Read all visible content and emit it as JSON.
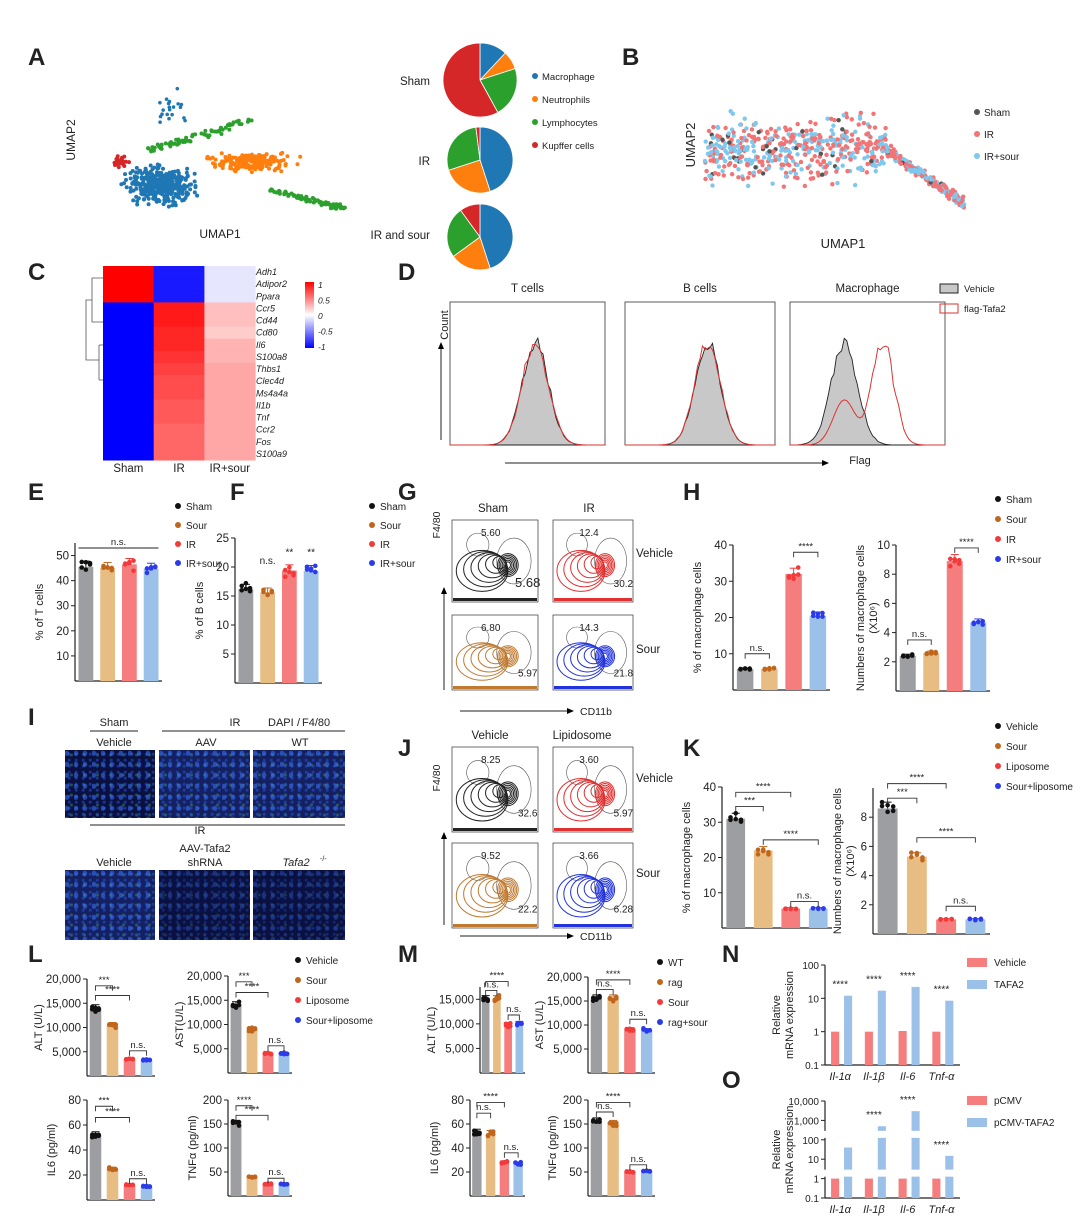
{
  "panel_letters": [
    "A",
    "B",
    "C",
    "D",
    "E",
    "F",
    "G",
    "H",
    "I",
    "J",
    "K",
    "L",
    "M",
    "N",
    "O"
  ],
  "umap": {
    "xlabel": "UMAP1",
    "ylabel": "UMAP2"
  },
  "cell_types": {
    "labels": [
      "Macrophage",
      "Neutrophils",
      "Lymphocytes",
      "Kupffer cells"
    ],
    "colors": [
      "#1f77b4",
      "#ff7f0e",
      "#2ca02c",
      "#d62728"
    ]
  },
  "pies": [
    {
      "label": "Sham",
      "fractions": [
        0.12,
        0.08,
        0.22,
        0.58
      ]
    },
    {
      "label": "IR",
      "fractions": [
        0.45,
        0.25,
        0.28,
        0.02
      ]
    },
    {
      "label": "IR and sour",
      "fractions": [
        0.45,
        0.2,
        0.25,
        0.1
      ]
    }
  ],
  "umap_B": {
    "labels": [
      "Sham",
      "IR",
      "IR+sour"
    ],
    "colors": [
      "#555555",
      "#f27474",
      "#7ec8f0"
    ]
  },
  "heatmap": {
    "columns": [
      "Sham",
      "IR",
      "IR+sour"
    ],
    "genes": [
      "Adh1",
      "Adipor2",
      "Ppara",
      "Ccr5",
      "Cd44",
      "Cd80",
      "Il6",
      "S100a8",
      "Thbs1",
      "Clec4d",
      "Ms4a4a",
      "Il1b",
      "Tnf",
      "Ccr2",
      "Fos",
      "S100a9"
    ],
    "highlight": [
      "Il6",
      "S100a8",
      "Il1b",
      "Tnf",
      "S100a9"
    ],
    "values": [
      [
        1,
        -0.9,
        -0.1
      ],
      [
        1,
        -0.9,
        -0.1
      ],
      [
        1,
        -0.9,
        -0.1
      ],
      [
        -1,
        0.9,
        0.25
      ],
      [
        -1,
        0.9,
        0.25
      ],
      [
        -1,
        0.85,
        0.2
      ],
      [
        -1,
        0.85,
        0.3
      ],
      [
        -1,
        0.8,
        0.3
      ],
      [
        -1,
        0.75,
        0.35
      ],
      [
        -1,
        0.7,
        0.35
      ],
      [
        -1,
        0.7,
        0.35
      ],
      [
        -1,
        0.65,
        0.35
      ],
      [
        -1,
        0.65,
        0.35
      ],
      [
        -1,
        0.6,
        0.35
      ],
      [
        -1,
        0.6,
        0.35
      ],
      [
        -1,
        0.6,
        0.35
      ]
    ],
    "colorbar_ticks": [
      "1",
      "0.5",
      "0",
      "-0.5",
      "-1"
    ]
  },
  "histograms": {
    "titles": [
      "T cells",
      "B cells",
      "Macrophage"
    ],
    "ylabel": "Count",
    "xlabel": "Flag",
    "legend": [
      "Vehicle",
      "flag-Tafa2"
    ]
  },
  "flow_G": {
    "cols": [
      "Sham",
      "IR"
    ],
    "rows": [
      "Vehicle",
      "Sour"
    ],
    "ylabel": "F4/80",
    "xlabel": "CD11b",
    "values": [
      [
        "5.60",
        "5.68"
      ],
      [
        "12.4",
        "30.2"
      ],
      [
        "6.80",
        "5.97"
      ],
      [
        "14.3",
        "21.8"
      ]
    ]
  },
  "flow_J": {
    "cols": [
      "Vehicle",
      "Lipidosome"
    ],
    "rows": [
      "Vehicle",
      "Sour"
    ],
    "ylabel": "F4/80",
    "xlabel": "CD11b",
    "values": [
      [
        "8.25",
        "32.6"
      ],
      [
        "3.60",
        "5.97"
      ],
      [
        "9.52",
        "22.2"
      ],
      [
        "3.66",
        "6.28"
      ]
    ]
  },
  "imaging_I": {
    "top_groups": [
      "Sham",
      "IR"
    ],
    "stain_dapi": "DAPI",
    "stain_sep": "/",
    "stain_f480": "F4/80",
    "top_labels": [
      "Vehicle",
      "AAV",
      "WT"
    ],
    "bottom_group": "IR",
    "aav_label": "AAV-Tafa2",
    "bottom_labels": [
      "Vehicle",
      "shRNA",
      "Tafa2",
      "-/-"
    ]
  },
  "colors": {
    "bars4": [
      "#9d9ea2",
      "#e8bd84",
      "#f57d7d",
      "#9cc1e8"
    ],
    "dots4": [
      "#111111",
      "#c0661c",
      "#f23a3a",
      "#2b3bea"
    ],
    "pair": [
      "#f57d7d",
      "#9cc1e8"
    ]
  },
  "chart_data": [
    {
      "panel": "E",
      "type": "bar",
      "ylabel": "% of T cells",
      "groups": [
        "Sham",
        "Sour",
        "IR",
        "IR+sour"
      ],
      "values": [
        45.5,
        45,
        46.5,
        44.7
      ],
      "ylim": [
        0,
        55
      ],
      "yticks": [
        10,
        20,
        30,
        40,
        50
      ],
      "yticklabels": [
        "10",
        "20",
        "30",
        "40",
        "50"
      ],
      "legend": [
        "Sham",
        "Sour",
        "IR",
        "IR+sour"
      ],
      "sig": [
        {
          "a": 0,
          "b": 3,
          "y": 53,
          "label": "n.s.",
          "line": true
        }
      ]
    },
    {
      "panel": "F",
      "type": "bar",
      "ylabel": "% of B cells",
      "groups": [
        "Sham",
        "Sour",
        "IR",
        "IR+sour"
      ],
      "values": [
        16.2,
        15.6,
        19.4,
        19.3
      ],
      "ylim": [
        0,
        25
      ],
      "yticks": [
        5,
        10,
        15,
        20,
        25
      ],
      "yticklabels": [
        "5",
        "10",
        "15",
        "20",
        "25"
      ],
      "legend": [
        "Sham",
        "Sour",
        "IR",
        "IR+sour"
      ],
      "sig": [
        {
          "a": 1,
          "y": 20.5,
          "label": "n.s."
        },
        {
          "a": 2,
          "y": 22,
          "label": "**"
        },
        {
          "a": 3,
          "y": 22,
          "label": "**"
        }
      ]
    },
    {
      "panel": "H",
      "type": "bar",
      "ylabel": "% of macrophage cells",
      "groups": [
        "Sham",
        "Sour",
        "IR",
        "IR+sour"
      ],
      "values": [
        5.8,
        5.8,
        32,
        20.5
      ],
      "ylim": [
        0,
        40
      ],
      "yticks": [
        10,
        20,
        30,
        40
      ],
      "yticklabels": [
        "10",
        "20",
        "30",
        "40"
      ],
      "sig": [
        {
          "a": 0,
          "b": 1,
          "y": 10,
          "label": "n.s."
        },
        {
          "a": 2,
          "b": 3,
          "y": 38,
          "label": "****"
        }
      ]
    },
    {
      "panel": "H",
      "type": "bar",
      "ylabel": "Numbers of macrophage cells",
      "ylabel2": "(X10⁶)",
      "groups": [
        "Sham",
        "Sour",
        "IR",
        "IR+sour"
      ],
      "values": [
        2.4,
        2.6,
        8.9,
        4.7
      ],
      "ylim": [
        0,
        10
      ],
      "yticks": [
        2,
        4,
        6,
        8,
        10
      ],
      "yticklabels": [
        "2",
        "4",
        "6",
        "8",
        "10"
      ],
      "legend": [
        "Sham",
        "Sour",
        "IR",
        "IR+sour"
      ],
      "sig": [
        {
          "a": 0,
          "b": 1,
          "y": 3.5,
          "label": "n.s."
        },
        {
          "a": 2,
          "b": 3,
          "y": 9.8,
          "label": "****"
        }
      ]
    },
    {
      "panel": "K",
      "type": "bar",
      "ylabel": "% of macrophage cells",
      "groups": [
        "Vehicle",
        "Sour",
        "Liposome",
        "Sour+liposome"
      ],
      "values": [
        31,
        22,
        5.5,
        5.5
      ],
      "ylim": [
        0,
        40
      ],
      "yticks": [
        10,
        20,
        30,
        40
      ],
      "yticklabels": [
        "10",
        "20",
        "30",
        "40"
      ],
      "sig": [
        {
          "a": 0,
          "b": 1,
          "y": 34.5,
          "label": "***"
        },
        {
          "a": 0,
          "b": 2,
          "y": 38.5,
          "label": "****"
        },
        {
          "a": 1,
          "b": 3,
          "y": 25,
          "label": "****"
        },
        {
          "a": 2,
          "b": 3,
          "y": 7.5,
          "label": "n.s."
        }
      ]
    },
    {
      "panel": "K",
      "type": "bar",
      "ylabel": "Numbers of macrophage cells",
      "ylabel2": "(X10⁶)",
      "groups": [
        "Vehicle",
        "Sour",
        "Liposome",
        "Sour+liposome"
      ],
      "values": [
        8.6,
        5.3,
        1.0,
        1.0
      ],
      "ylim": [
        0,
        10
      ],
      "yticks": [
        2,
        4,
        6,
        8
      ],
      "yticklabels": [
        "2",
        "4",
        "6",
        "8"
      ],
      "legend": [
        "Vehicle",
        "Sour",
        "Liposome",
        "Sour+liposome"
      ],
      "sig": [
        {
          "a": 0,
          "b": 1,
          "y": 9.3,
          "label": "***"
        },
        {
          "a": 0,
          "b": 2,
          "y": 10.3,
          "label": "****"
        },
        {
          "a": 1,
          "b": 3,
          "y": 6.6,
          "label": "****"
        },
        {
          "a": 2,
          "b": 3,
          "y": 1.9,
          "label": "n.s."
        }
      ]
    },
    {
      "panel": "L",
      "type": "bar",
      "ylabel": "ALT (U/L)",
      "groups": [
        "Vehicle",
        "Sour",
        "Liposome",
        "Sour+liposome"
      ],
      "values": [
        14000,
        10500,
        3500,
        3300
      ],
      "ylim": [
        0,
        20000
      ],
      "yticks": [
        5000,
        10000,
        15000,
        20000
      ],
      "yticklabels": [
        "5,000",
        "10,000",
        "15,000",
        "20,000"
      ],
      "legend": [
        "Vehicle",
        "Sour",
        "Liposome",
        "Sour+liposome"
      ],
      "sig": [
        {
          "a": 0,
          "b": 1,
          "y": 18600,
          "label": "***"
        },
        {
          "a": 0,
          "b": 2,
          "y": 16600,
          "label": "****"
        },
        {
          "a": 2,
          "b": 3,
          "y": 5200,
          "label": "n.s."
        }
      ]
    },
    {
      "panel": "L",
      "type": "bar",
      "ylabel": "AST(U/L)",
      "groups": [
        "Vehicle",
        "Sour",
        "Liposome",
        "Sour+liposome"
      ],
      "values": [
        14000,
        9000,
        4000,
        4000
      ],
      "ylim": [
        0,
        20000
      ],
      "yticks": [
        5000,
        10000,
        15000,
        20000
      ],
      "yticklabels": [
        "5,000",
        "10,000",
        "15,000",
        "20,000"
      ],
      "sig": [
        {
          "a": 0,
          "b": 1,
          "y": 18800,
          "label": "***"
        },
        {
          "a": 0,
          "b": 2,
          "y": 16600,
          "label": "****"
        },
        {
          "a": 2,
          "b": 3,
          "y": 5600,
          "label": "n.s."
        }
      ]
    },
    {
      "panel": "L",
      "type": "bar",
      "ylabel": "IL6 (pg/ml)",
      "groups": [
        "Vehicle",
        "Sour",
        "Liposome",
        "Sour+liposome"
      ],
      "values": [
        52,
        25,
        12,
        11
      ],
      "ylim": [
        0,
        80
      ],
      "yticks": [
        20,
        40,
        60,
        80
      ],
      "yticklabels": [
        "20",
        "40",
        "60",
        "80"
      ],
      "sig": [
        {
          "a": 0,
          "b": 1,
          "y": 75,
          "label": "***"
        },
        {
          "a": 0,
          "b": 2,
          "y": 66,
          "label": "****"
        },
        {
          "a": 2,
          "b": 3,
          "y": 17,
          "label": "n.s."
        }
      ]
    },
    {
      "panel": "L",
      "type": "bar",
      "ylabel": "TNFα (pg/ml)",
      "groups": [
        "Vehicle",
        "Sour",
        "Liposome",
        "Sour+liposome"
      ],
      "values": [
        150,
        40,
        25,
        25
      ],
      "ylim": [
        0,
        200
      ],
      "yticks": [
        50,
        100,
        150,
        200
      ],
      "yticklabels": [
        "50",
        "100",
        "150",
        "200"
      ],
      "sig": [
        {
          "a": 0,
          "b": 1,
          "y": 188,
          "label": "****"
        },
        {
          "a": 0,
          "b": 2,
          "y": 168,
          "label": "****"
        },
        {
          "a": 2,
          "b": 3,
          "y": 37,
          "label": "n.s."
        }
      ]
    },
    {
      "panel": "M",
      "type": "bar",
      "ylabel": "ALT (U/L)",
      "groups": [
        "WT",
        "rag",
        "Sour",
        "rag+sour"
      ],
      "values": [
        15000,
        15000,
        9800,
        10000
      ],
      "ylim": [
        0,
        17500
      ],
      "yticks": [
        5000,
        10000,
        15000
      ],
      "yticklabels": [
        "5,000",
        "10,000",
        "15,000"
      ],
      "legend": [
        "WT",
        "rag",
        "Sour",
        "rag+sour"
      ],
      "sig": [
        {
          "a": 0,
          "b": 1,
          "y": 16800,
          "label": "n.s."
        },
        {
          "a": 0,
          "b": 2,
          "y": 18600,
          "label": "****"
        },
        {
          "a": 2,
          "b": 3,
          "y": 11800,
          "label": "n.s."
        }
      ]
    },
    {
      "panel": "M",
      "type": "bar",
      "ylabel": "AST (U/L)",
      "groups": [
        "WT",
        "rag",
        "Sour",
        "rag+sour"
      ],
      "values": [
        15500,
        15500,
        9000,
        8800
      ],
      "ylim": [
        0,
        20000
      ],
      "yticks": [
        5000,
        10000,
        15000,
        20000
      ],
      "yticklabels": [
        "5,000",
        "10,000",
        "15,000",
        "20,000"
      ],
      "sig": [
        {
          "a": 0,
          "b": 1,
          "y": 17400,
          "label": "n.s."
        },
        {
          "a": 0,
          "b": 2,
          "y": 19400,
          "label": "****"
        },
        {
          "a": 2,
          "b": 3,
          "y": 11200,
          "label": "n.s."
        }
      ]
    },
    {
      "panel": "M",
      "type": "bar",
      "ylabel": "IL6 (pg/ml)",
      "groups": [
        "WT",
        "rag",
        "Sour",
        "rag+sour"
      ],
      "values": [
        53,
        52,
        28,
        27
      ],
      "ylim": [
        0,
        80
      ],
      "yticks": [
        20,
        40,
        60,
        80
      ],
      "yticklabels": [
        "20",
        "40",
        "60",
        "80"
      ],
      "sig": [
        {
          "a": 0,
          "b": 1,
          "y": 69,
          "label": "n.s."
        },
        {
          "a": 0,
          "b": 2,
          "y": 78,
          "label": "****"
        },
        {
          "a": 2,
          "b": 3,
          "y": 36,
          "label": "n.s."
        }
      ]
    },
    {
      "panel": "M",
      "type": "bar",
      "ylabel": "TNFα (pg/ml)",
      "groups": [
        "WT",
        "rag",
        "Sour",
        "rag+sour"
      ],
      "values": [
        155,
        150,
        50,
        52
      ],
      "ylim": [
        0,
        200
      ],
      "yticks": [
        50,
        100,
        150,
        200
      ],
      "yticklabels": [
        "50",
        "100",
        "150",
        "200"
      ],
      "sig": [
        {
          "a": 0,
          "b": 1,
          "y": 175,
          "label": "n.s."
        },
        {
          "a": 0,
          "b": 2,
          "y": 195,
          "label": "****"
        },
        {
          "a": 2,
          "b": 3,
          "y": 65,
          "label": "n.s."
        }
      ]
    },
    {
      "panel": "N",
      "type": "bar",
      "log": true,
      "ylabel": "Relative",
      "ylabel2": "mRNA expression",
      "categories": [
        "Il-1α",
        "Il-1β",
        "Il-6",
        "Tnf-α"
      ],
      "series": [
        {
          "name": "Vehicle",
          "values": [
            1,
            1,
            1.05,
            1
          ]
        },
        {
          "name": "TAFA2",
          "values": [
            12,
            17,
            22,
            8.5
          ]
        }
      ],
      "ylim": [
        0.1,
        100
      ],
      "yticks": [
        0.1,
        1,
        10,
        100
      ],
      "yticklabels": [
        "0.1",
        "1",
        "10",
        "100"
      ],
      "sig_labels": [
        "****",
        "****",
        "****",
        "****"
      ]
    },
    {
      "panel": "O",
      "type": "bar",
      "log": true,
      "ylabel": "Relative",
      "ylabel2": "mRNA expression",
      "categories": [
        "Il-1α",
        "Il-1β",
        "Il-6",
        "Tnf-α"
      ],
      "series": [
        {
          "name": "pCMV",
          "values": [
            1,
            1,
            1,
            1
          ]
        },
        {
          "name": "pCMV-TAFA2",
          "values": [
            40,
            500,
            3000,
            15
          ]
        }
      ],
      "ylim": [
        0.1,
        10000
      ],
      "yticks": [
        0.1,
        1,
        10,
        100,
        1000,
        10000
      ],
      "yticklabels": [
        "0.1",
        "1",
        "10",
        "100",
        "1,000",
        "10,000"
      ],
      "sig_labels": [
        "****",
        "****",
        "****",
        "****"
      ]
    }
  ]
}
